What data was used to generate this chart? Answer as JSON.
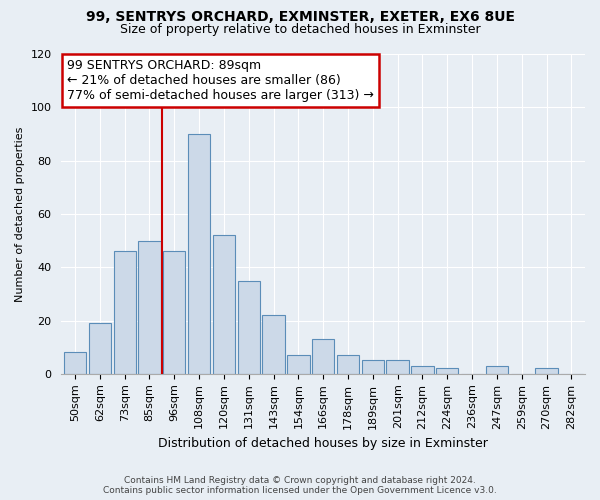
{
  "title": "99, SENTRYS ORCHARD, EXMINSTER, EXETER, EX6 8UE",
  "subtitle": "Size of property relative to detached houses in Exminster",
  "xlabel": "Distribution of detached houses by size in Exminster",
  "ylabel": "Number of detached properties",
  "bar_labels": [
    "50sqm",
    "62sqm",
    "73sqm",
    "85sqm",
    "96sqm",
    "108sqm",
    "120sqm",
    "131sqm",
    "143sqm",
    "154sqm",
    "166sqm",
    "178sqm",
    "189sqm",
    "201sqm",
    "212sqm",
    "224sqm",
    "236sqm",
    "247sqm",
    "259sqm",
    "270sqm",
    "282sqm"
  ],
  "bar_values": [
    8,
    19,
    46,
    50,
    46,
    90,
    52,
    35,
    22,
    7,
    13,
    7,
    5,
    5,
    3,
    2,
    0,
    3,
    0,
    2,
    0
  ],
  "bar_color": "#ccd9e8",
  "bar_edge_color": "#5b8db8",
  "annotation_title": "99 SENTRYS ORCHARD: 89sqm",
  "annotation_line1": "← 21% of detached houses are smaller (86)",
  "annotation_line2": "77% of semi-detached houses are larger (313) →",
  "annotation_box_color": "#ffffff",
  "annotation_box_edge": "#cc0000",
  "reference_line_color": "#cc0000",
  "ylim": [
    0,
    120
  ],
  "footer_line1": "Contains HM Land Registry data © Crown copyright and database right 2024.",
  "footer_line2": "Contains public sector information licensed under the Open Government Licence v3.0.",
  "background_color": "#e8eef4",
  "grid_color": "#ffffff",
  "title_fontsize": 10,
  "subtitle_fontsize": 9,
  "ylabel_fontsize": 8,
  "xlabel_fontsize": 9,
  "tick_fontsize": 8,
  "annotation_fontsize": 9,
  "footer_fontsize": 6.5
}
